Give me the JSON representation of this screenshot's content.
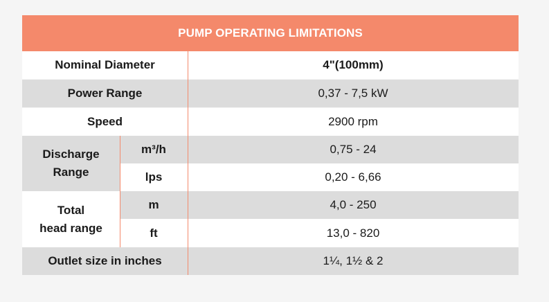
{
  "table": {
    "title": "PUMP OPERATING LIMITATIONS",
    "rows": [
      {
        "label": "Nominal Diameter",
        "value": "4\"(100mm)"
      },
      {
        "label": "Power Range",
        "value": "0,37 - 7,5 kW"
      },
      {
        "label": "Speed",
        "value": "2900 rpm"
      }
    ],
    "discharge": {
      "label_line1": "Discharge",
      "label_line2": "Range",
      "rows": [
        {
          "unit": "m³/h",
          "value": "0,75 - 24"
        },
        {
          "unit": "lps",
          "value": "0,20 - 6,66"
        }
      ]
    },
    "head": {
      "label_line1": "Total",
      "label_line2": "head range",
      "rows": [
        {
          "unit": "m",
          "value": "4,0 - 250"
        },
        {
          "unit": "ft",
          "value": "13,0 - 820"
        }
      ]
    },
    "outlet": {
      "label": "Outlet size in inches",
      "value": "1¼, 1½ & 2"
    },
    "colors": {
      "header": "#f4896b",
      "row_gray": "#dcdcdc",
      "row_white": "#ffffff",
      "divider": "#f4896b"
    }
  }
}
